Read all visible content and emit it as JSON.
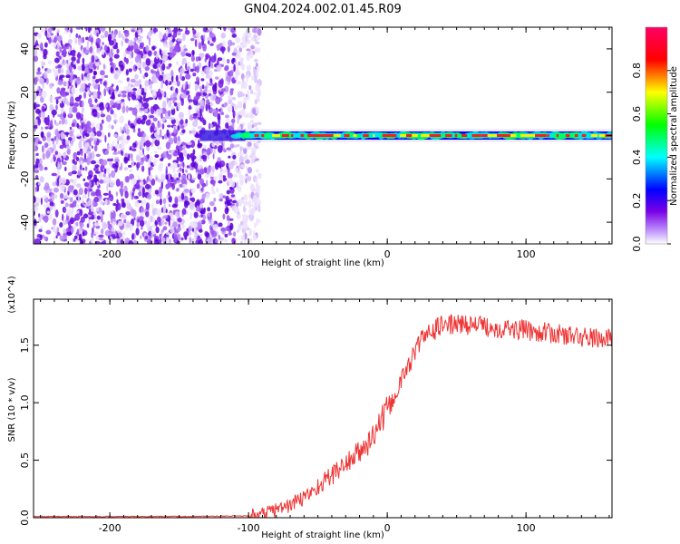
{
  "title": "GN04.2024.002.01.45.R09",
  "chart_data": [
    {
      "type": "heatmap",
      "x_range": [
        -255,
        162
      ],
      "y_range": [
        -50,
        50
      ],
      "xlabel": "Height of straight line (km)",
      "ylabel": "Frequency (Hz)",
      "x_ticks": [
        "-200",
        "-100",
        "0",
        "100"
      ],
      "x_tick_values": [
        -200,
        -100,
        0,
        100
      ],
      "y_ticks": [
        "-40",
        "-20",
        "0",
        "20",
        "40"
      ],
      "y_tick_values": [
        -40,
        -20,
        0,
        20,
        40
      ],
      "noise_region_x": [
        -255,
        -100
      ],
      "line_region_x": [
        -135,
        162
      ],
      "line_center_frequency": 0,
      "colorbar": {
        "label": "Normalized spectral amplitude",
        "range": [
          0,
          1
        ],
        "ticks": [
          "0.0",
          "0.2",
          "0.4",
          "0.6",
          "0.8"
        ],
        "tick_values": [
          0.0,
          0.2,
          0.4,
          0.6,
          0.8
        ],
        "colormap": [
          "#ffffff",
          "#7a00e6",
          "#0000ff",
          "#00ffff",
          "#00ff00",
          "#ffff00",
          "#ff0000",
          "#ff0066"
        ]
      }
    },
    {
      "type": "line",
      "x_range": [
        -255,
        162
      ],
      "y_range": [
        0,
        1.9
      ],
      "y_multiplier": "(x10^4)",
      "xlabel": "Height of straight line (km)",
      "ylabel": "SNR (10 * v/v)",
      "x_ticks": [
        "-200",
        "-100",
        "0",
        "100"
      ],
      "x_tick_values": [
        -200,
        -100,
        0,
        100
      ],
      "y_ticks": [
        "0.0",
        "0.5",
        "1.0",
        "1.5"
      ],
      "y_tick_values": [
        0.0,
        0.5,
        1.0,
        1.5
      ],
      "color": "#ee3333",
      "series": [
        {
          "x": [
            -255,
            -200,
            -150,
            -100,
            -92,
            -85,
            -78,
            -70,
            -62,
            -55,
            -45,
            -35,
            -25,
            -15,
            -5,
            5,
            15,
            25,
            40,
            60,
            80,
            100,
            120,
            140,
            162
          ],
          "y": [
            0.01,
            0.01,
            0.01,
            0.015,
            0.03,
            0.05,
            0.08,
            0.11,
            0.16,
            0.22,
            0.32,
            0.42,
            0.52,
            0.62,
            0.82,
            1.05,
            1.32,
            1.56,
            1.68,
            1.68,
            1.65,
            1.63,
            1.6,
            1.57,
            1.55
          ]
        }
      ]
    }
  ]
}
